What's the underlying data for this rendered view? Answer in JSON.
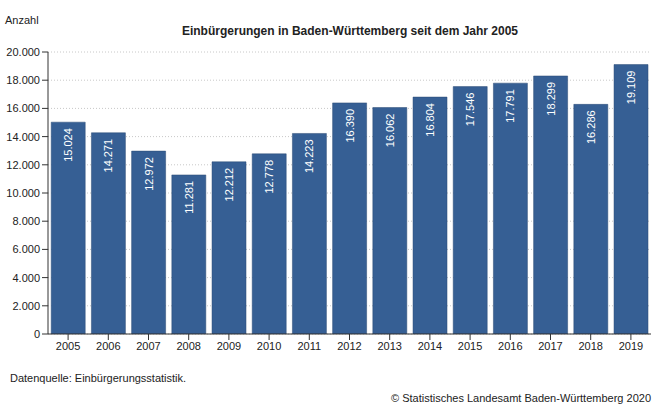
{
  "chart_data": {
    "type": "bar",
    "title": "Einbürgerungen in Baden-Württemberg seit dem Jahr 2005",
    "y_label": "Anzahl",
    "source": "Datenquelle: Einbürgerungsstatistik.",
    "copyright": "© Statistisches Landesamt Baden-Württemberg 2020",
    "categories": [
      "2005",
      "2006",
      "2007",
      "2008",
      "2009",
      "2010",
      "2011",
      "2012",
      "2013",
      "2014",
      "2015",
      "2016",
      "2017",
      "2018",
      "2019"
    ],
    "values": [
      15024,
      14271,
      12972,
      11281,
      12212,
      12778,
      14223,
      16390,
      16062,
      16804,
      17546,
      17791,
      18299,
      16286,
      19109
    ],
    "value_labels": [
      "15.024",
      "14.271",
      "12.972",
      "11.281",
      "12.212",
      "12.778",
      "14.223",
      "16.390",
      "16.062",
      "16.804",
      "17.546",
      "17.791",
      "18.299",
      "16.286",
      "19.109"
    ],
    "color": "#365f94",
    "ylim": [
      0,
      20000
    ],
    "yticks": [
      0,
      {
        "value": 2000,
        "label": "2.000"
      },
      {
        "value": 4000,
        "label": "4.000"
      },
      {
        "value": 6000,
        "label": "6.000"
      },
      {
        "value": 8000,
        "label": "8.000"
      },
      {
        "value": 10000,
        "label": "10.000"
      },
      {
        "value": 12000,
        "label": "12.000"
      },
      {
        "value": 14000,
        "label": "14.000"
      },
      {
        "value": 16000,
        "label": "16.000"
      },
      {
        "value": 18000,
        "label": "18.000"
      },
      {
        "value": 20000,
        "label": "20.000"
      }
    ],
    "grid": true,
    "data_labels": true
  }
}
